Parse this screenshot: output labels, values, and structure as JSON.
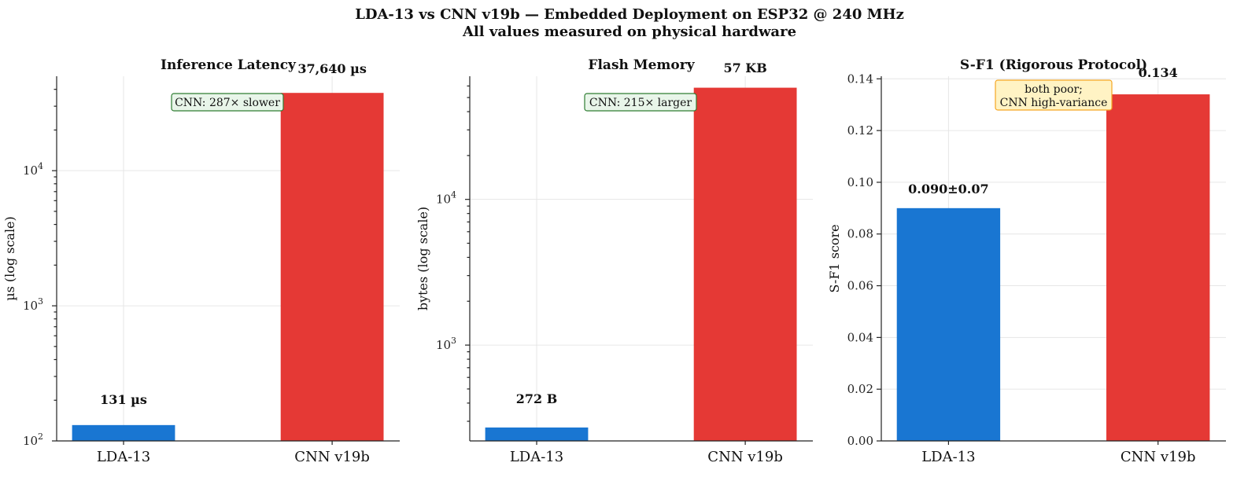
{
  "figure": {
    "title_line1": "LDA-13 vs CNN v19b — Embedded Deployment on ESP32 @ 240 MHz",
    "title_line2": "All values measured on physical hardware"
  },
  "colors": {
    "lda": "#1976d2",
    "cnn": "#e53935",
    "green_box_edge": "#2e7d32",
    "green_box_fill": "#e8f5e9",
    "yellow_box_edge": "#f5a623",
    "yellow_box_fill": "#fff3c4"
  },
  "chart_data": [
    {
      "type": "bar",
      "title": "Inference Latency",
      "ylabel": "µs (log scale)",
      "yscale": "log",
      "categories": [
        "LDA-13",
        "CNN v19b"
      ],
      "values": [
        131,
        37640
      ],
      "value_labels": [
        "131 µs",
        "37,640 µs"
      ],
      "ylim": [
        100,
        50000
      ],
      "major_ticks": [
        100,
        1000,
        10000
      ],
      "annotation": "CNN: 287× slower",
      "grid": true
    },
    {
      "type": "bar",
      "title": "Flash Memory",
      "ylabel": "bytes (log scale)",
      "yscale": "log",
      "categories": [
        "LDA-13",
        "CNN v19b"
      ],
      "values": [
        272,
        58400
      ],
      "value_labels": [
        "272 B",
        "57 KB"
      ],
      "ylim": [
        220,
        70000
      ],
      "major_ticks": [
        1000,
        10000
      ],
      "annotation": "CNN: 215× larger",
      "grid": true
    },
    {
      "type": "bar",
      "title": "S-F1 (Rigorous Protocol)",
      "ylabel": "S-F1 score",
      "yscale": "linear",
      "categories": [
        "LDA-13",
        "CNN v19b"
      ],
      "values": [
        0.09,
        0.134
      ],
      "value_labels": [
        "0.090±0.07",
        "0.134"
      ],
      "ylim": [
        0,
        0.141
      ],
      "major_ticks": [
        0.0,
        0.02,
        0.04,
        0.06,
        0.08,
        0.1,
        0.12,
        0.14
      ],
      "annotation_lines": [
        "both poor;",
        "CNN high-variance"
      ],
      "grid": true
    }
  ]
}
